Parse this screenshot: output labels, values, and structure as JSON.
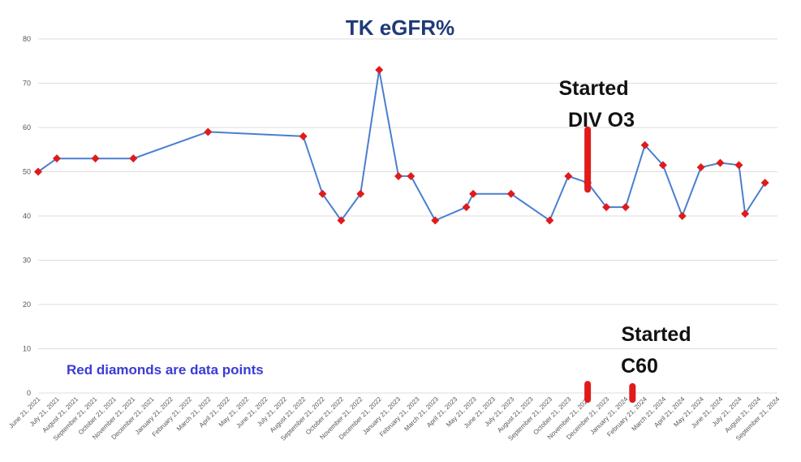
{
  "chart_data": {
    "type": "line",
    "title": "TK eGFR%",
    "xlabel": "",
    "ylabel": "",
    "ylim": [
      0,
      80
    ],
    "y_ticks": [
      "0",
      "10",
      "20",
      "30",
      "40",
      "50",
      "60",
      "70",
      "80"
    ],
    "grid": "horizontal",
    "x_ticks": [
      "June 21, 2021",
      "July 21, 2021",
      "August 21, 2021",
      "September 21, 2021",
      "October 21, 2021",
      "November 21, 2021",
      "December 21, 2021",
      "January 21, 2022",
      "February 21, 2022",
      "March 21, 2022",
      "April 21, 2022",
      "May 21, 2022",
      "June 21, 2022",
      "July 21, 2022",
      "August 21, 2022",
      "September 21, 2022",
      "October 21, 2022",
      "November 21, 2022",
      "December 21, 2022",
      "January 21, 2023",
      "February 21, 2023",
      "March 21, 2023",
      "April 21, 2023",
      "May 21, 2023",
      "June 21, 2023",
      "July 21, 2023",
      "August 21, 2023",
      "September 21, 2023",
      "October 21, 2023",
      "November 21, 2023",
      "December 21, 2023",
      "January 21, 2024",
      "February 21, 2024",
      "March 21, 2024",
      "April 21, 2024",
      "May 21, 2024",
      "June 21, 2024",
      "July 21, 2024",
      "August 21, 2024",
      "September 21, 2024"
    ],
    "series": [
      {
        "color": "#4a7fd0",
        "marker_color": "#e01b1b",
        "marker": "diamond",
        "points": [
          {
            "x": "2021-06-21",
            "y": 50
          },
          {
            "x": "2021-07-21",
            "y": 53
          },
          {
            "x": "2021-09-21",
            "y": 53
          },
          {
            "x": "2021-11-21",
            "y": 53
          },
          {
            "x": "2022-03-21",
            "y": 59
          },
          {
            "x": "2022-08-21",
            "y": 58
          },
          {
            "x": "2022-09-21",
            "y": 45
          },
          {
            "x": "2022-10-21",
            "y": 39
          },
          {
            "x": "2022-11-21",
            "y": 45
          },
          {
            "x": "2022-12-21",
            "y": 73
          },
          {
            "x": "2023-01-21",
            "y": 49
          },
          {
            "x": "2023-02-10",
            "y": 49
          },
          {
            "x": "2023-03-21",
            "y": 39
          },
          {
            "x": "2023-05-10",
            "y": 42
          },
          {
            "x": "2023-05-21",
            "y": 45
          },
          {
            "x": "2023-07-21",
            "y": 45
          },
          {
            "x": "2023-09-21",
            "y": 39
          },
          {
            "x": "2023-10-21",
            "y": 49
          },
          {
            "x": "2023-11-21",
            "y": 47.5
          },
          {
            "x": "2023-12-21",
            "y": 42
          },
          {
            "x": "2024-01-21",
            "y": 42
          },
          {
            "x": "2024-02-21",
            "y": 56
          },
          {
            "x": "2024-03-21",
            "y": 51.5
          },
          {
            "x": "2024-04-21",
            "y": 40
          },
          {
            "x": "2024-05-21",
            "y": 51
          },
          {
            "x": "2024-06-21",
            "y": 52
          },
          {
            "x": "2024-07-21",
            "y": 51.5
          },
          {
            "x": "2024-07-31",
            "y": 40.5
          },
          {
            "x": "2024-09-01",
            "y": 47.5
          }
        ]
      }
    ],
    "annotations": [
      {
        "lines": [
          "Started",
          "DIV O3"
        ],
        "x": "2023-11-21",
        "marker_range": [
          46,
          59.5
        ]
      },
      {
        "lines": [
          "Started",
          "C60"
        ],
        "x": "2024-02-01",
        "marker_range": [
          -1.5,
          1.5
        ]
      }
    ],
    "markers": [
      {
        "x": "2023-11-21",
        "range": [
          -1.5,
          2
        ]
      },
      {
        "x": "2024-02-01",
        "range": [
          -1.5,
          1.5
        ]
      }
    ],
    "note": "Red diamonds are  data points",
    "colors": {
      "title": "#1f3a78",
      "note": "#3b3bd6",
      "line": "#4a7fd0",
      "point": "#e01b1b",
      "marker": "#e01b1b",
      "grid": "#dedede"
    }
  }
}
